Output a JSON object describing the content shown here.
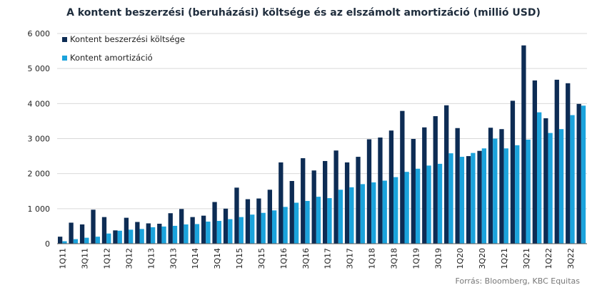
{
  "colors": {
    "series1": "#0d2c54",
    "series2": "#1ba3dc",
    "grid": "#d9d9d9",
    "axis": "#555555"
  },
  "chart_data": {
    "type": "bar",
    "title": "A kontent beszerzési (beruházási) költsége és az elszámolt amortizáció (millió USD)",
    "source": "Forrás: Bloomberg, KBC Equitas",
    "ylim": [
      0,
      6000
    ],
    "yticks": [
      0,
      1000,
      2000,
      3000,
      4000,
      5000,
      6000
    ],
    "ytick_labels": [
      "0",
      "1 000",
      "2 000",
      "3 000",
      "4 000",
      "5 000",
      "6 000"
    ],
    "grid": true,
    "legend_position": "top-left",
    "categories": [
      "1Q11",
      "2Q11",
      "3Q11",
      "4Q11",
      "1Q12",
      "2Q12",
      "3Q12",
      "4Q12",
      "1Q13",
      "2Q13",
      "3Q13",
      "4Q13",
      "1Q14",
      "2Q14",
      "3Q14",
      "4Q14",
      "1Q15",
      "2Q15",
      "3Q15",
      "4Q15",
      "1Q16",
      "2Q16",
      "3Q16",
      "4Q16",
      "1Q17",
      "2Q17",
      "3Q17",
      "4Q17",
      "1Q18",
      "2Q18",
      "3Q18",
      "4Q18",
      "1Q19",
      "2Q19",
      "3Q19",
      "4Q19",
      "1Q20",
      "2Q20",
      "3Q20",
      "4Q20",
      "1Q21",
      "2Q21",
      "3Q21",
      "4Q21",
      "1Q22",
      "2Q22",
      "3Q22",
      "4Q22"
    ],
    "x_labels": [
      "1Q11",
      "3Q11",
      "1Q12",
      "3Q12",
      "1Q13",
      "3Q13",
      "1Q14",
      "3Q14",
      "1Q15",
      "3Q15",
      "1Q16",
      "3Q16",
      "1Q17",
      "3Q17",
      "1Q18",
      "3Q18",
      "1Q19",
      "3Q19",
      "1Q20",
      "3Q20",
      "1Q21",
      "3Q21",
      "1Q22",
      "3Q22"
    ],
    "series": [
      {
        "name": "Kontent beszerzési költsége",
        "color": "#0d2c54",
        "values": [
          200,
          600,
          550,
          970,
          760,
          380,
          740,
          620,
          580,
          570,
          870,
          990,
          760,
          800,
          1190,
          1000,
          1600,
          1270,
          1290,
          1540,
          2320,
          1790,
          2440,
          2090,
          2360,
          2660,
          2320,
          2480,
          2980,
          3030,
          3230,
          3790,
          2990,
          3320,
          3640,
          3950,
          3300,
          2500,
          2650,
          3310,
          3270,
          4080,
          5660,
          4660,
          3580,
          4680,
          4580,
          3990
        ]
      },
      {
        "name": "Kontent amortizáció",
        "color": "#1ba3dc",
        "values": [
          70,
          130,
          170,
          200,
          290,
          370,
          400,
          420,
          470,
          490,
          510,
          550,
          560,
          630,
          650,
          700,
          760,
          830,
          880,
          950,
          1050,
          1170,
          1220,
          1340,
          1300,
          1540,
          1610,
          1700,
          1750,
          1800,
          1900,
          2050,
          2140,
          2230,
          2280,
          2580,
          2480,
          2590,
          2720,
          3000,
          2720,
          2810,
          2970,
          3750,
          3160,
          3270,
          3670,
          3940
        ]
      }
    ]
  }
}
